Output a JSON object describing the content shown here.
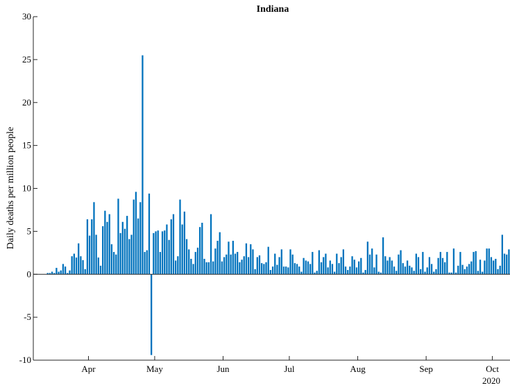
{
  "chart_data": {
    "type": "bar",
    "title": "Indiana",
    "xlabel": "",
    "ylabel": "Daily deaths per million people",
    "ylim": [
      -10,
      30
    ],
    "yticks": [
      -10,
      -5,
      0,
      5,
      10,
      15,
      20,
      25,
      30
    ],
    "x_start": "2020-03-07",
    "x_ticks": [
      {
        "date": "2020-04-01",
        "label": "Apr"
      },
      {
        "date": "2020-05-01",
        "label": "May"
      },
      {
        "date": "2020-06-01",
        "label": "Jun"
      },
      {
        "date": "2020-07-01",
        "label": "Jul"
      },
      {
        "date": "2020-08-01",
        "label": "Aug"
      },
      {
        "date": "2020-09-01",
        "label": "Sep"
      },
      {
        "date": "2020-10-01",
        "label": "Oct"
      }
    ],
    "year_label": "2020",
    "color": "#0072BD",
    "grid": false,
    "values": [
      0,
      0,
      0,
      0,
      0,
      0,
      0.15,
      0.15,
      0.3,
      0.15,
      0.75,
      0.3,
      0.45,
      1.2,
      0.9,
      0.15,
      0.45,
      2.1,
      2.4,
      1.95,
      3.6,
      2.1,
      1.65,
      0.6,
      6.4,
      4.5,
      6.4,
      8.4,
      4.6,
      1.95,
      1.0,
      5.6,
      7.4,
      6.1,
      7.0,
      3.5,
      2.6,
      2.3,
      8.8,
      4.8,
      6.1,
      5.3,
      6.8,
      4.1,
      4.6,
      8.7,
      9.6,
      6.5,
      8.4,
      25.5,
      2.6,
      2.8,
      9.4,
      -9.4,
      4.8,
      5.0,
      5.1,
      2.6,
      5.0,
      5.1,
      5.8,
      4.0,
      6.4,
      7.0,
      1.6,
      2.1,
      8.7,
      5.8,
      7.3,
      4.1,
      2.9,
      1.8,
      1.2,
      2.6,
      3.1,
      5.5,
      6.0,
      1.8,
      1.4,
      1.4,
      7.0,
      1.5,
      3.0,
      3.9,
      4.9,
      1.5,
      2.0,
      2.3,
      3.8,
      2.3,
      3.9,
      2.4,
      2.6,
      1.4,
      1.7,
      2.1,
      3.6,
      2.0,
      3.5,
      2.9,
      0.6,
      2.0,
      2.2,
      1.3,
      1.2,
      1.4,
      3.2,
      0.5,
      0.9,
      2.4,
      1.1,
      2.0,
      2.9,
      0.9,
      0.9,
      0.8,
      2.9,
      2.3,
      1.3,
      1.2,
      0.9,
      0.3,
      1.9,
      1.6,
      1.5,
      1.2,
      2.6,
      0.2,
      0.4,
      2.8,
      1.4,
      2.0,
      2.4,
      0.8,
      1.6,
      1.2,
      0.3,
      2.4,
      1.3,
      2.0,
      2.9,
      0.9,
      0.5,
      0.9,
      2.1,
      1.7,
      0.8,
      1.5,
      1.9,
      0.2,
      0.5,
      3.8,
      2.3,
      3.0,
      0.8,
      2.3,
      0.3,
      0.2,
      4.3,
      2.1,
      1.6,
      2.0,
      1.6,
      0.9,
      0.4,
      2.3,
      2.8,
      1.3,
      0.9,
      1.6,
      1.0,
      0.8,
      0.4,
      2.4,
      2.0,
      0.6,
      2.6,
      0.3,
      0.8,
      2.0,
      1.2,
      0.3,
      0.6,
      1.9,
      2.6,
      1.9,
      1.4,
      2.6,
      0.2,
      0.2,
      3.0,
      0.2,
      1.0,
      2.6,
      1.1,
      0.6,
      0.9,
      1.2,
      1.5,
      2.6,
      2.7,
      0.4,
      1.7,
      0.3,
      1.6,
      3.0,
      3.0,
      2.0,
      1.6,
      1.8,
      0.6,
      1.0,
      4.6,
      2.4,
      2.3,
      2.9
    ]
  }
}
